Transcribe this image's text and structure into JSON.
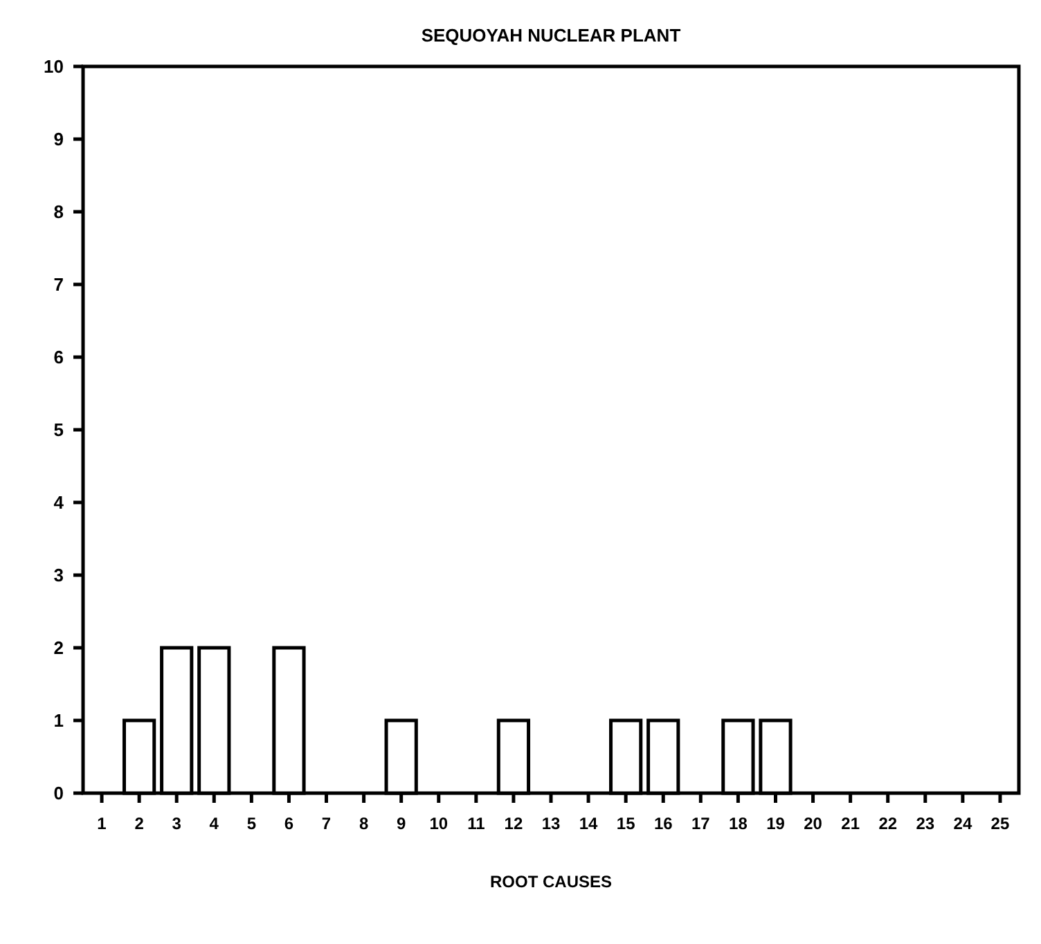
{
  "chart_data": {
    "type": "bar",
    "title": "SEQUOYAH NUCLEAR PLANT",
    "xlabel": "ROOT CAUSES",
    "categories": [
      "1",
      "2",
      "3",
      "4",
      "5",
      "6",
      "7",
      "8",
      "9",
      "10",
      "11",
      "12",
      "13",
      "14",
      "15",
      "16",
      "17",
      "18",
      "19",
      "20",
      "21",
      "22",
      "23",
      "24",
      "25"
    ],
    "values": [
      0,
      1,
      2,
      2,
      0,
      2,
      0,
      0,
      1,
      0,
      0,
      1,
      0,
      0,
      1,
      1,
      0,
      1,
      1,
      0,
      0,
      0,
      0,
      0,
      0
    ],
    "color": "#ffffff",
    "ylim": [
      0,
      10
    ],
    "yticks": [
      0,
      1,
      2,
      3,
      4,
      5,
      6,
      7,
      8,
      9,
      10
    ],
    "grid": false
  }
}
